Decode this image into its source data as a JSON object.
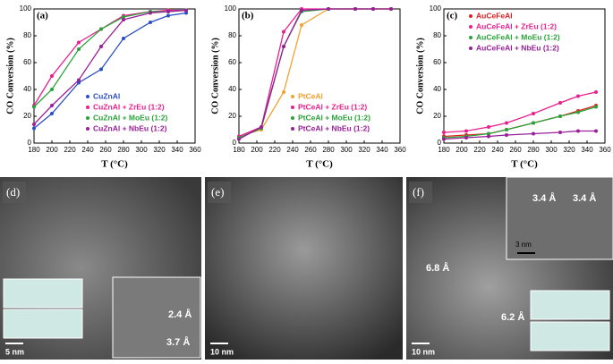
{
  "chart_data": [
    {
      "type": "line",
      "title": "(a)",
      "x_label": "T (°C)",
      "y_label": "CO Conversion (%)",
      "x": [
        180,
        200,
        230,
        255,
        280,
        310,
        330,
        350
      ],
      "xlim": [
        180,
        360
      ],
      "xticks": [
        180,
        200,
        220,
        240,
        260,
        280,
        300,
        320,
        340,
        360
      ],
      "ylim": [
        0,
        100
      ],
      "yticks": [
        0,
        20,
        40,
        60,
        80,
        100
      ],
      "legend": "lower right",
      "series": [
        {
          "name": "CuZnAl",
          "color": "#2b4fc4",
          "values": [
            11,
            22,
            45,
            55,
            78,
            90,
            95,
            97
          ]
        },
        {
          "name": "CuZnAl + ZrEu (1:2)",
          "color": "#e8208f",
          "values": [
            28,
            50,
            75,
            85,
            95,
            98,
            99,
            99
          ]
        },
        {
          "name": "CuZnAl + MoEu (1:2)",
          "color": "#2aa33a",
          "values": [
            27,
            40,
            70,
            85,
            94,
            98,
            98,
            99
          ]
        },
        {
          "name": "CuZnAl + NbEu (1:2)",
          "color": "#9a1f9a",
          "values": [
            14,
            28,
            47,
            72,
            92,
            97,
            98,
            99
          ]
        }
      ]
    },
    {
      "type": "line",
      "title": "(b)",
      "x_label": "T (°C)",
      "y_label": "CO Conversion (%)",
      "x": [
        180,
        205,
        230,
        250,
        280,
        310,
        330,
        350
      ],
      "xlim": [
        180,
        360
      ],
      "xticks": [
        180,
        200,
        220,
        240,
        260,
        280,
        300,
        320,
        340,
        360
      ],
      "ylim": [
        0,
        100
      ],
      "yticks": [
        0,
        20,
        40,
        60,
        80,
        100
      ],
      "legend": "lower right",
      "series": [
        {
          "name": "PtCeAl",
          "color": "#f4a030",
          "values": [
            5,
            10,
            38,
            88,
            100,
            100,
            100,
            100
          ]
        },
        {
          "name": "PtCeAl + ZrEu (1:2)",
          "color": "#e8208f",
          "values": [
            5,
            12,
            83,
            100,
            100,
            100,
            100,
            100
          ]
        },
        {
          "name": "PtCeAl + MoEu (1:2)",
          "color": "#2aa33a",
          "values": [
            4,
            11,
            72,
            98,
            100,
            100,
            100,
            100
          ]
        },
        {
          "name": "PtCeAl + NbEu (1:2)",
          "color": "#9a1f9a",
          "values": [
            3,
            12,
            72,
            99,
            100,
            100,
            100,
            100
          ]
        }
      ]
    },
    {
      "type": "line",
      "title": "(c)",
      "x_label": "T (°C)",
      "y_label": "CO Conversion (%)",
      "x": [
        180,
        205,
        230,
        250,
        280,
        310,
        330,
        350
      ],
      "xlim": [
        180,
        360
      ],
      "xticks": [
        180,
        200,
        220,
        240,
        260,
        280,
        300,
        320,
        340,
        360
      ],
      "ylim": [
        0,
        100
      ],
      "yticks": [
        0,
        20,
        40,
        60,
        80,
        100
      ],
      "legend": "upper left",
      "series": [
        {
          "name": "AuCeFeAl",
          "color": "#e02020",
          "values": [
            5,
            6,
            7,
            10,
            15,
            20,
            24,
            28
          ]
        },
        {
          "name": "AuCeFeAl + ZrEu (1:2)",
          "color": "#e8208f",
          "values": [
            8,
            9,
            12,
            15,
            22,
            30,
            35,
            38
          ]
        },
        {
          "name": "AuCeFeAl + MoEu (1:2)",
          "color": "#2aa33a",
          "values": [
            4,
            5,
            7,
            10,
            15,
            20,
            23,
            27
          ]
        },
        {
          "name": "AuCeFeAl + NbEu (1:2)",
          "color": "#9a1f9a",
          "values": [
            3,
            4,
            5,
            6,
            7,
            8,
            9,
            9
          ]
        }
      ]
    }
  ],
  "micrographs": [
    {
      "label": "(d)",
      "scale": "5 nm",
      "annotations": [
        "2.4 Å",
        "3.7 Å"
      ]
    },
    {
      "label": "(e)",
      "scale": "10 nm",
      "annotations": []
    },
    {
      "label": "(f)",
      "scale": "10 nm",
      "inset_scale": "3 nm",
      "annotations": [
        "6.8 Å",
        "6.2 Å",
        "3.4 Å",
        "3.4 Å"
      ]
    }
  ]
}
